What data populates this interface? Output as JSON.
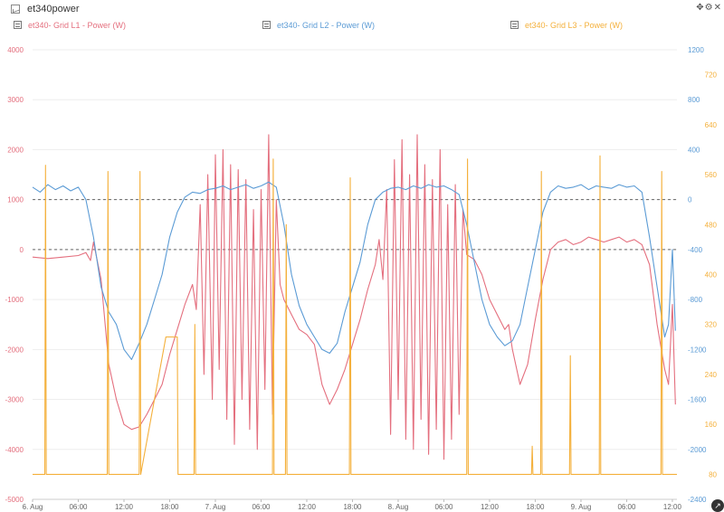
{
  "window": {
    "title": "et340power"
  },
  "colors": {
    "l1": "#e46f7e",
    "l2": "#5b9bd5",
    "l3": "#f4b03b"
  },
  "chart_data": {
    "type": "line",
    "legend": [
      "et340- Grid L1 - Power (W)",
      "et340- Grid L2 - Power (W)",
      "et340- Grid L3 - Power (W)"
    ],
    "x_range_hours": [
      0,
      84.6
    ],
    "x_ticks": [
      {
        "h": 0,
        "label": "6. Aug"
      },
      {
        "h": 6,
        "label": "06:00"
      },
      {
        "h": 12,
        "label": "12:00"
      },
      {
        "h": 18,
        "label": "18:00"
      },
      {
        "h": 24,
        "label": "7. Aug"
      },
      {
        "h": 30,
        "label": "06:00"
      },
      {
        "h": 36,
        "label": "12:00"
      },
      {
        "h": 42,
        "label": "18:00"
      },
      {
        "h": 48,
        "label": "8. Aug"
      },
      {
        "h": 54,
        "label": "06:00"
      },
      {
        "h": 60,
        "label": "12:00"
      },
      {
        "h": 66,
        "label": "18:00"
      },
      {
        "h": 72,
        "label": "9. Aug"
      },
      {
        "h": 78,
        "label": "06:00"
      },
      {
        "h": 84,
        "label": "12:00"
      }
    ],
    "y_left": {
      "axis": "L1",
      "range": [
        -5000,
        4000
      ],
      "ticks": [
        4000,
        3000,
        2000,
        1000,
        0,
        -1000,
        -2000,
        -3000,
        -4000,
        -5000
      ]
    },
    "y_right_inner": {
      "axis": "L2",
      "range": [
        -2400,
        1200
      ],
      "ticks": [
        1200,
        800,
        400,
        0,
        -400,
        -800,
        -1200,
        -1600,
        -2000,
        -2400
      ]
    },
    "y_right_outer": {
      "axis": "L3",
      "range": [
        40,
        760
      ],
      "ticks": [
        720,
        640,
        560,
        480,
        400,
        320,
        240,
        160,
        80
      ]
    },
    "series": [
      {
        "name": "et340- Grid L1 - Power (W)",
        "axis": "left",
        "points": [
          [
            0,
            -150
          ],
          [
            2,
            -180
          ],
          [
            4,
            -150
          ],
          [
            6,
            -120
          ],
          [
            7,
            -60
          ],
          [
            7.6,
            -220
          ],
          [
            8,
            150
          ],
          [
            9,
            -600
          ],
          [
            10,
            -2300
          ],
          [
            11,
            -3000
          ],
          [
            12,
            -3500
          ],
          [
            13,
            -3600
          ],
          [
            14,
            -3550
          ],
          [
            15,
            -3300
          ],
          [
            16,
            -3000
          ],
          [
            17,
            -2700
          ],
          [
            18,
            -2100
          ],
          [
            19,
            -1600
          ],
          [
            20,
            -1100
          ],
          [
            21,
            -700
          ],
          [
            21.5,
            -1200
          ],
          [
            22,
            900
          ],
          [
            22.5,
            -2500
          ],
          [
            23,
            1500
          ],
          [
            23.6,
            -3000
          ],
          [
            24,
            1900
          ],
          [
            24.5,
            -2400
          ],
          [
            25,
            2000
          ],
          [
            25.5,
            -3400
          ],
          [
            26,
            1700
          ],
          [
            26.5,
            -3900
          ],
          [
            27,
            1600
          ],
          [
            27.5,
            -3000
          ],
          [
            28,
            1400
          ],
          [
            28.5,
            -3600
          ],
          [
            29,
            800
          ],
          [
            29.5,
            -4000
          ],
          [
            30,
            1200
          ],
          [
            30.5,
            -2800
          ],
          [
            31,
            2300
          ],
          [
            31.5,
            -3300
          ],
          [
            32,
            1000
          ],
          [
            32.5,
            -700
          ],
          [
            33,
            -1000
          ],
          [
            34,
            -1300
          ],
          [
            35,
            -1600
          ],
          [
            36,
            -1700
          ],
          [
            37,
            -1900
          ],
          [
            38,
            -2700
          ],
          [
            39,
            -3100
          ],
          [
            40,
            -2800
          ],
          [
            41,
            -2400
          ],
          [
            42,
            -1900
          ],
          [
            43,
            -1400
          ],
          [
            44,
            -800
          ],
          [
            45,
            -300
          ],
          [
            45.5,
            200
          ],
          [
            46,
            -600
          ],
          [
            46.5,
            1200
          ],
          [
            47,
            -3700
          ],
          [
            47.5,
            1800
          ],
          [
            48,
            -3000
          ],
          [
            48.5,
            2200
          ],
          [
            49,
            -3800
          ],
          [
            49.5,
            1500
          ],
          [
            50,
            -4000
          ],
          [
            50.5,
            2300
          ],
          [
            51,
            -3400
          ],
          [
            51.5,
            1700
          ],
          [
            52,
            -4100
          ],
          [
            52.5,
            1400
          ],
          [
            53,
            -3600
          ],
          [
            53.5,
            2000
          ],
          [
            54,
            -4200
          ],
          [
            54.5,
            900
          ],
          [
            55,
            -3800
          ],
          [
            55.5,
            1300
          ],
          [
            56,
            -3300
          ],
          [
            56.5,
            800
          ],
          [
            57,
            -100
          ],
          [
            58,
            -200
          ],
          [
            59,
            -500
          ],
          [
            60,
            -1000
          ],
          [
            61,
            -1300
          ],
          [
            62,
            -1600
          ],
          [
            62.5,
            -1500
          ],
          [
            63,
            -2000
          ],
          [
            64,
            -2700
          ],
          [
            65,
            -2300
          ],
          [
            66,
            -1400
          ],
          [
            67,
            -600
          ],
          [
            68,
            0
          ],
          [
            69,
            150
          ],
          [
            70,
            200
          ],
          [
            71,
            100
          ],
          [
            72,
            150
          ],
          [
            73,
            250
          ],
          [
            74,
            200
          ],
          [
            75,
            150
          ],
          [
            76,
            200
          ],
          [
            77,
            250
          ],
          [
            78,
            150
          ],
          [
            79,
            200
          ],
          [
            80,
            100
          ],
          [
            81,
            -300
          ],
          [
            82,
            -1500
          ],
          [
            83,
            -2400
          ],
          [
            83.5,
            -2700
          ],
          [
            84,
            -1100
          ],
          [
            84.4,
            -3100
          ]
        ]
      },
      {
        "name": "et340- Grid L2 - Power (W)",
        "axis": "right_inner",
        "points": [
          [
            0,
            100
          ],
          [
            1,
            60
          ],
          [
            2,
            120
          ],
          [
            3,
            80
          ],
          [
            4,
            110
          ],
          [
            5,
            70
          ],
          [
            6,
            100
          ],
          [
            7,
            0
          ],
          [
            8,
            -300
          ],
          [
            9,
            -700
          ],
          [
            10,
            -900
          ],
          [
            11,
            -1000
          ],
          [
            12,
            -1200
          ],
          [
            13,
            -1280
          ],
          [
            14,
            -1150
          ],
          [
            15,
            -1000
          ],
          [
            16,
            -800
          ],
          [
            17,
            -600
          ],
          [
            18,
            -300
          ],
          [
            19,
            -100
          ],
          [
            20,
            20
          ],
          [
            21,
            60
          ],
          [
            22,
            50
          ],
          [
            23,
            80
          ],
          [
            24,
            90
          ],
          [
            25,
            110
          ],
          [
            26,
            80
          ],
          [
            27,
            100
          ],
          [
            28,
            120
          ],
          [
            29,
            90
          ],
          [
            30,
            110
          ],
          [
            31,
            140
          ],
          [
            32,
            100
          ],
          [
            33,
            -200
          ],
          [
            34,
            -600
          ],
          [
            35,
            -850
          ],
          [
            36,
            -1000
          ],
          [
            37,
            -1100
          ],
          [
            38,
            -1200
          ],
          [
            39,
            -1230
          ],
          [
            40,
            -1150
          ],
          [
            41,
            -900
          ],
          [
            42,
            -700
          ],
          [
            43,
            -500
          ],
          [
            44,
            -200
          ],
          [
            45,
            0
          ],
          [
            46,
            60
          ],
          [
            47,
            90
          ],
          [
            48,
            100
          ],
          [
            49,
            80
          ],
          [
            50,
            110
          ],
          [
            51,
            90
          ],
          [
            52,
            120
          ],
          [
            53,
            100
          ],
          [
            54,
            110
          ],
          [
            55,
            80
          ],
          [
            56,
            40
          ],
          [
            57,
            -200
          ],
          [
            58,
            -500
          ],
          [
            59,
            -800
          ],
          [
            60,
            -1000
          ],
          [
            61,
            -1100
          ],
          [
            62,
            -1170
          ],
          [
            63,
            -1130
          ],
          [
            64,
            -1000
          ],
          [
            65,
            -700
          ],
          [
            66,
            -400
          ],
          [
            67,
            -100
          ],
          [
            68,
            60
          ],
          [
            69,
            110
          ],
          [
            70,
            90
          ],
          [
            71,
            100
          ],
          [
            72,
            120
          ],
          [
            73,
            80
          ],
          [
            74,
            110
          ],
          [
            75,
            100
          ],
          [
            76,
            90
          ],
          [
            77,
            120
          ],
          [
            78,
            100
          ],
          [
            79,
            110
          ],
          [
            80,
            60
          ],
          [
            81,
            -300
          ],
          [
            82,
            -700
          ],
          [
            83,
            -1100
          ],
          [
            83.5,
            -1000
          ],
          [
            84,
            -400
          ],
          [
            84.4,
            -1050
          ]
        ]
      },
      {
        "name": "et340- Grid L3 - Power (W)",
        "axis": "right_outer",
        "points": [
          [
            0,
            80
          ],
          [
            1.6,
            80
          ],
          [
            1.7,
            575
          ],
          [
            1.8,
            80
          ],
          [
            9.8,
            80
          ],
          [
            9.9,
            565
          ],
          [
            10,
            80
          ],
          [
            14,
            80
          ],
          [
            14.1,
            565
          ],
          [
            14.2,
            80
          ],
          [
            17.5,
            300
          ],
          [
            19,
            300
          ],
          [
            19.1,
            80
          ],
          [
            21.2,
            80
          ],
          [
            21.3,
            320
          ],
          [
            21.4,
            80
          ],
          [
            31.5,
            80
          ],
          [
            31.6,
            585
          ],
          [
            31.7,
            80
          ],
          [
            33.2,
            80
          ],
          [
            33.3,
            480
          ],
          [
            33.4,
            80
          ],
          [
            41.6,
            80
          ],
          [
            41.7,
            555
          ],
          [
            41.8,
            80
          ],
          [
            57,
            80
          ],
          [
            57.1,
            585
          ],
          [
            57.2,
            80
          ],
          [
            65.5,
            80
          ],
          [
            65.6,
            125
          ],
          [
            65.7,
            80
          ],
          [
            66.7,
            80
          ],
          [
            66.8,
            565
          ],
          [
            66.9,
            80
          ],
          [
            70.5,
            80
          ],
          [
            70.6,
            270
          ],
          [
            70.7,
            80
          ],
          [
            74.4,
            80
          ],
          [
            74.5,
            590
          ],
          [
            74.6,
            80
          ],
          [
            82.5,
            80
          ],
          [
            82.6,
            565
          ],
          [
            82.7,
            80
          ],
          [
            84.6,
            80
          ]
        ]
      }
    ],
    "dashed_reference_lines": [
      {
        "axis": "right_inner",
        "value": 0
      },
      {
        "axis": "right_inner",
        "value": -400
      }
    ]
  }
}
